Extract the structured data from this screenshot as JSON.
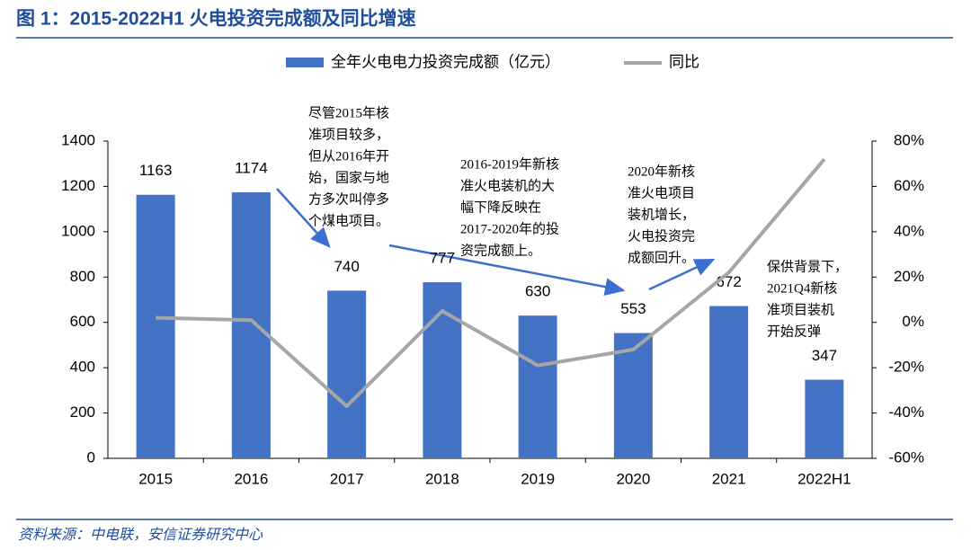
{
  "chart_data": {
    "type": "bar_line",
    "title": "图 1：2015-2022H1 火电投资完成额及同比增速",
    "categories": [
      "2015",
      "2016",
      "2017",
      "2018",
      "2019",
      "2020",
      "2021",
      "2022H1"
    ],
    "series": [
      {
        "name": "全年火电电力投资完成额（亿元）",
        "color": "#4472c4",
        "type": "bar",
        "values": [
          1163,
          1174,
          740,
          777,
          630,
          553,
          672,
          347
        ]
      },
      {
        "name": "同比",
        "color": "#a6a6a6",
        "type": "line",
        "axis": "y2",
        "values": [
          2,
          1,
          -37,
          5,
          -19,
          -12,
          22,
          72
        ]
      }
    ],
    "ylim": [
      0,
      1400
    ],
    "yticks": [
      0,
      200,
      400,
      600,
      800,
      1000,
      1200,
      1400
    ],
    "y2lim": [
      -60,
      80
    ],
    "y2ticks": [
      {
        "value": -60,
        "label": "-60%"
      },
      {
        "value": -40,
        "label": "-40%"
      },
      {
        "value": -20,
        "label": "-20%"
      },
      {
        "value": 0,
        "label": "0%"
      },
      {
        "value": 20,
        "label": "20%"
      },
      {
        "value": 40,
        "label": "40%"
      },
      {
        "value": 60,
        "label": "60%"
      },
      {
        "value": 80,
        "label": "80%"
      }
    ],
    "legend": "top",
    "annotations": [
      [
        "尽管2015年核",
        "准项目较多，",
        "但从2016年开",
        "始，国家与地",
        "方多次叫停多",
        "个煤电项目。"
      ],
      [
        "2016-2019年新核",
        "准火电装机的大",
        "幅下降反映在",
        "2017-2020年的投",
        "资完成额上。"
      ],
      [
        "2020年新核",
        "准火电项目",
        "装机增长，",
        "火电投资完",
        "成额回升。"
      ],
      [
        "保供背景下，",
        "2021Q4新核",
        "准项目装机",
        "开始反弹"
      ]
    ],
    "source": "资料来源：中电联，安信证券研究中心"
  }
}
